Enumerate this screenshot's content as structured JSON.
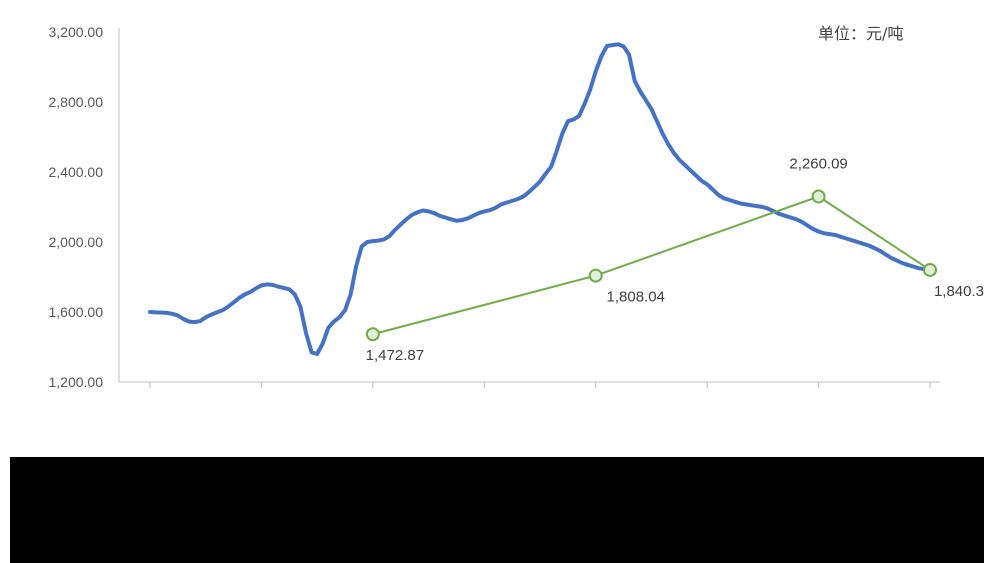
{
  "chart_data": {
    "type": "line",
    "unit_label": "单位：元/吨",
    "y_ticks": [
      "3,200.00",
      "2,800.00",
      "2,400.00",
      "2,000.00",
      "1,600.00",
      "1,200.00"
    ],
    "y_tick_values": [
      3200,
      2800,
      2400,
      2000,
      1600,
      1200
    ],
    "ylim": [
      1200,
      3200
    ],
    "grid": false,
    "legend": "none",
    "series": [
      {
        "color": "#4472c4",
        "x": [
          0.0,
          0.05,
          0.1,
          0.15,
          0.2,
          0.25,
          0.3,
          0.35,
          0.4,
          0.45,
          0.5,
          0.55,
          0.6,
          0.65,
          0.7,
          0.75,
          0.8,
          0.85,
          0.9,
          0.95,
          1.0,
          1.05,
          1.1,
          1.15,
          1.2,
          1.25,
          1.3,
          1.35,
          1.4,
          1.45,
          1.5,
          1.55,
          1.6,
          1.65,
          1.7,
          1.75,
          1.8,
          1.85,
          1.9,
          1.95,
          2.0,
          2.05,
          2.1,
          2.15,
          2.2,
          2.25,
          2.3,
          2.35,
          2.4,
          2.45,
          2.5,
          2.55,
          2.6,
          2.65,
          2.7,
          2.75,
          2.8,
          2.85,
          2.9,
          2.95,
          3.0,
          3.05,
          3.1,
          3.15,
          3.2,
          3.25,
          3.3,
          3.35,
          3.4,
          3.45,
          3.5,
          3.55,
          3.6,
          3.65,
          3.7,
          3.75,
          3.8,
          3.85,
          3.9,
          3.95,
          4.0,
          4.05,
          4.1,
          4.15,
          4.2,
          4.25,
          4.3,
          4.35,
          4.4,
          4.45,
          4.5,
          4.55,
          4.6,
          4.65,
          4.7,
          4.75,
          4.8,
          4.85,
          4.9,
          4.95,
          5.0,
          5.05,
          5.1,
          5.15,
          5.2,
          5.25,
          5.3,
          5.35,
          5.4,
          5.45,
          5.5,
          5.55,
          5.6,
          5.65,
          5.7,
          5.75,
          5.8,
          5.85,
          5.9,
          5.95,
          6.0,
          6.05,
          6.1,
          6.15,
          6.2,
          6.25,
          6.3,
          6.35,
          6.4,
          6.45,
          6.5,
          6.55,
          6.6,
          6.65,
          6.7,
          6.75,
          6.8,
          6.85,
          6.9,
          6.95,
          7.0
        ],
        "values": [
          1600,
          1598,
          1597,
          1595,
          1590,
          1580,
          1560,
          1545,
          1542,
          1548,
          1570,
          1585,
          1598,
          1610,
          1630,
          1655,
          1680,
          1700,
          1715,
          1735,
          1752,
          1758,
          1755,
          1745,
          1738,
          1730,
          1700,
          1630,
          1480,
          1370,
          1360,
          1420,
          1510,
          1545,
          1570,
          1610,
          1700,
          1860,
          1975,
          2000,
          2005,
          2008,
          2015,
          2035,
          2070,
          2100,
          2130,
          2155,
          2170,
          2180,
          2175,
          2165,
          2150,
          2140,
          2130,
          2122,
          2125,
          2135,
          2150,
          2165,
          2175,
          2182,
          2195,
          2215,
          2225,
          2235,
          2245,
          2260,
          2285,
          2315,
          2345,
          2390,
          2430,
          2520,
          2620,
          2690,
          2700,
          2720,
          2790,
          2870,
          2975,
          3060,
          3120,
          3125,
          3130,
          3118,
          3070,
          2920,
          2860,
          2810,
          2760,
          2690,
          2620,
          2560,
          2510,
          2470,
          2440,
          2410,
          2380,
          2350,
          2330,
          2300,
          2270,
          2250,
          2240,
          2230,
          2220,
          2215,
          2210,
          2205,
          2200,
          2190,
          2175,
          2160,
          2150,
          2140,
          2130,
          2115,
          2095,
          2075,
          2060,
          2050,
          2045,
          2040,
          2030,
          2020,
          2010,
          2000,
          1990,
          1980,
          1965,
          1950,
          1930,
          1910,
          1895,
          1880,
          1870,
          1860,
          1850,
          1845,
          1840
        ]
      },
      {
        "color": "#70ad47",
        "x": [
          2,
          4,
          6,
          7
        ],
        "values": [
          1472.87,
          1808.04,
          2260.09,
          1840.35
        ],
        "labels": [
          "1,472.87",
          "1,808.04",
          "2,260.09",
          "1,840.3"
        ]
      }
    ]
  }
}
